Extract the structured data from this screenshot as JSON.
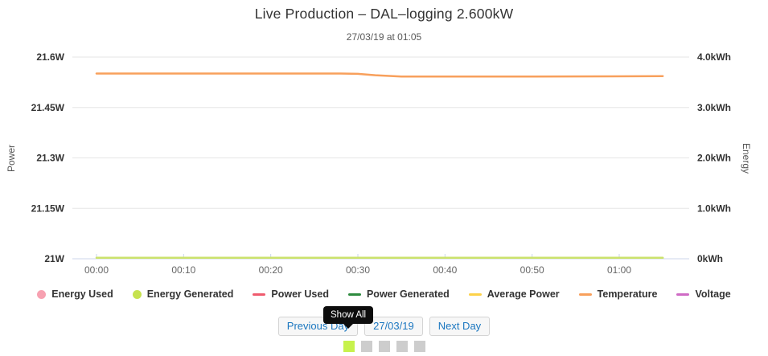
{
  "header": {
    "title": "Live Production – DAL–logging 2.600kW",
    "subtitle": "27/03/19 at 01:05"
  },
  "chart_data": {
    "type": "line",
    "title": "Live Production – DAL–logging 2.600kW",
    "subtitle": "27/03/19 at 01:05",
    "grid": true,
    "legend_position": "bottom",
    "x_axis": {
      "unit": "time (hh:mm)",
      "range_minutes": [
        0,
        68
      ],
      "data_end_minute": 65,
      "ticks": [
        {
          "minute": 0,
          "label": "00:00"
        },
        {
          "minute": 10,
          "label": "00:10"
        },
        {
          "minute": 20,
          "label": "00:20"
        },
        {
          "minute": 30,
          "label": "00:30"
        },
        {
          "minute": 40,
          "label": "00:40"
        },
        {
          "minute": 50,
          "label": "00:50"
        },
        {
          "minute": 60,
          "label": "01:00"
        }
      ]
    },
    "y_axis_left": {
      "title": "Power",
      "range": [
        21,
        21.6
      ],
      "ticks": [
        {
          "value": 21.6,
          "label": "21.6W"
        },
        {
          "value": 21.45,
          "label": "21.45W"
        },
        {
          "value": 21.3,
          "label": "21.3W"
        },
        {
          "value": 21.15,
          "label": "21.15W"
        },
        {
          "value": 21,
          "label": "21W"
        }
      ]
    },
    "y_axis_right": {
      "title": "Energy",
      "range": [
        0,
        4
      ],
      "ticks": [
        {
          "value": 4,
          "label": "4.0kWh"
        },
        {
          "value": 3,
          "label": "3.0kWh"
        },
        {
          "value": 2,
          "label": "2.0kWh"
        },
        {
          "value": 1,
          "label": "1.0kWh"
        },
        {
          "value": 0,
          "label": "0kWh"
        }
      ]
    },
    "series": [
      {
        "name": "Temperature",
        "color": "#f8a05c",
        "axis": "left",
        "points": [
          [
            0,
            21.551
          ],
          [
            28,
            21.551
          ],
          [
            30,
            21.55
          ],
          [
            32,
            21.546
          ],
          [
            35,
            21.542
          ],
          [
            50,
            21.542
          ],
          [
            65,
            21.543
          ]
        ]
      },
      {
        "name": "Energy Generated",
        "color": "#cbe26b",
        "axis": "right",
        "points": [
          [
            0,
            0.02
          ],
          [
            65,
            0.02
          ]
        ]
      }
    ]
  },
  "legend": {
    "items": [
      {
        "label": "Energy Used",
        "marker": "circle",
        "color": "#f7a1b1"
      },
      {
        "label": "Energy Generated",
        "marker": "circle",
        "color": "#c6e24f"
      },
      {
        "label": "Power Used",
        "marker": "line",
        "color": "#ef5b6e"
      },
      {
        "label": "Power Generated",
        "marker": "line",
        "color": "#2e8b3f"
      },
      {
        "label": "Average Power",
        "marker": "line",
        "color": "#fdd24a"
      },
      {
        "label": "Temperature",
        "marker": "line",
        "color": "#f8a05c"
      },
      {
        "label": "Voltage",
        "marker": "line",
        "color": "#cf6bc5"
      }
    ]
  },
  "controls": {
    "previous_label": "Previous Day",
    "date_label": "27/03/19",
    "next_label": "Next Day"
  },
  "tooltip": {
    "text": "Show All"
  },
  "pagination": {
    "active_color": "#c7f24c",
    "inactive_color": "#cdcdcd",
    "squares": [
      "active",
      "inactive",
      "inactive",
      "inactive",
      "inactive"
    ]
  },
  "colors": {
    "gridline": "#e6e6e6",
    "axis_line": "#ccd6eb",
    "button_text": "#1b77c0",
    "tooltip_bg": "#0d0d0d"
  }
}
